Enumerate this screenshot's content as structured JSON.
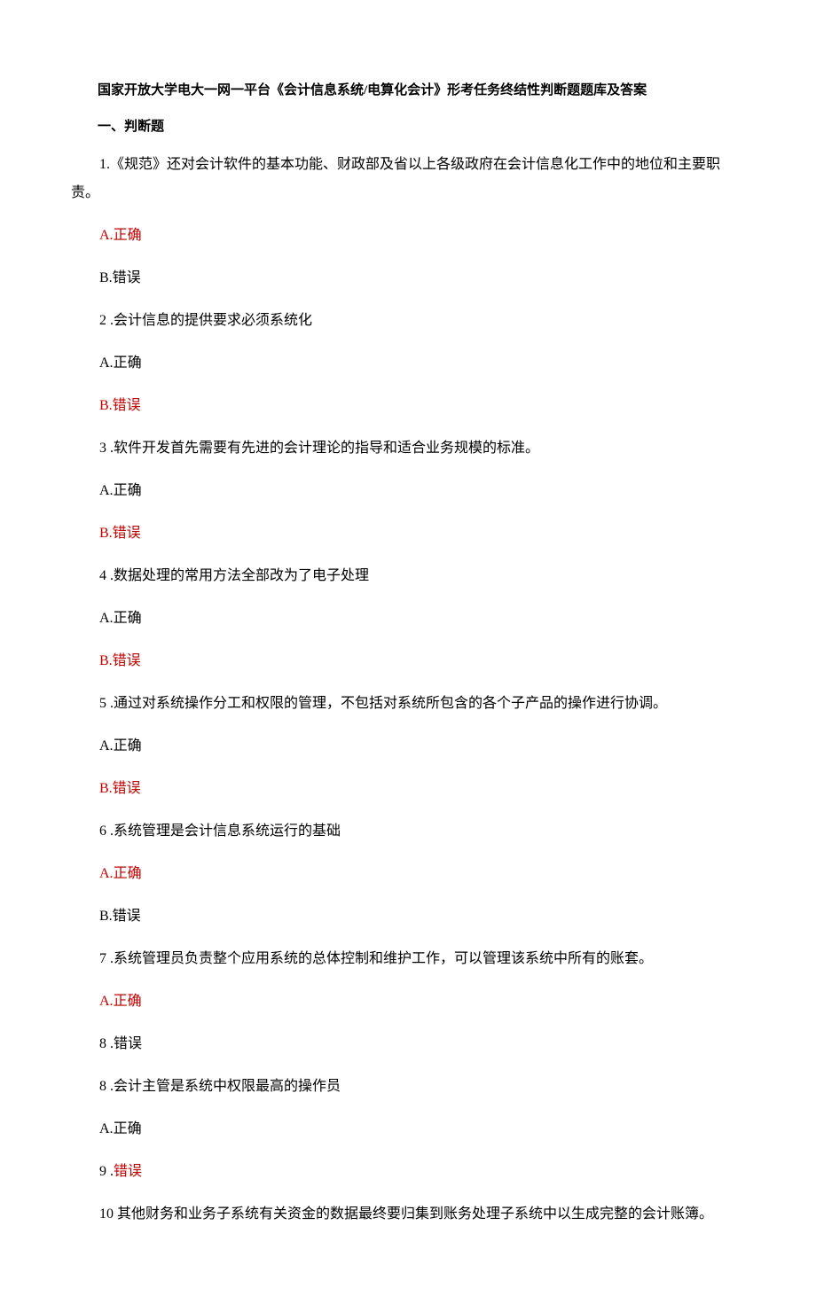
{
  "colors": {
    "text": "#000000",
    "highlight": "#c00000",
    "background": "#ffffff"
  },
  "typography": {
    "title_fontsize": 15,
    "body_fontsize": 16,
    "font_family": "SimSun",
    "line_height": 2.0
  },
  "title": "国家开放大学电大一网一平台《会计信息系统/电算化会计》形考任务终结性判断题题库及答案",
  "section_heading": "一、判断题",
  "items": [
    {
      "prefix": "1.",
      "text": "《规范》还对会计软件的基本功能、财政部及省以上各级政府在会计信息化工作中的地位和主要职责。",
      "color": "normal"
    },
    {
      "prefix": "A.",
      "text": "正确",
      "color": "correct"
    },
    {
      "prefix": "B.",
      "text": "错误",
      "color": "normal"
    },
    {
      "prefix": "2 .",
      "text": "会计信息的提供要求必须系统化",
      "color": "normal"
    },
    {
      "prefix": "A.",
      "text": "正确",
      "color": "normal"
    },
    {
      "prefix": "B.",
      "text": "错误",
      "color": "correct"
    },
    {
      "prefix": "3 .",
      "text": "软件开发首先需要有先进的会计理论的指导和适合业务规模的标准。",
      "color": "normal"
    },
    {
      "prefix": "A.",
      "text": "正确",
      "color": "normal"
    },
    {
      "prefix": "B.",
      "text": "错误",
      "color": "correct"
    },
    {
      "prefix": "4 .",
      "text": "数据处理的常用方法全部改为了电子处理",
      "color": "normal"
    },
    {
      "prefix": "A.",
      "text": "正确",
      "color": "normal"
    },
    {
      "prefix": "B.",
      "text": "错误",
      "color": "correct"
    },
    {
      "prefix": "5 .",
      "text": "通过对系统操作分工和权限的管理，不包括对系统所包含的各个子产品的操作进行协调。",
      "color": "normal"
    },
    {
      "prefix": "A.",
      "text": "正确",
      "color": "normal"
    },
    {
      "prefix": "B.",
      "text": "错误",
      "color": "correct"
    },
    {
      "prefix": "6 .",
      "text": "系统管理是会计信息系统运行的基础",
      "color": "normal"
    },
    {
      "prefix": "A.",
      "text": "正确",
      "color": "correct"
    },
    {
      "prefix": "B.",
      "text": "错误",
      "color": "normal"
    },
    {
      "prefix": "7 .",
      "text": "系统管理员负责整个应用系统的总体控制和维护工作，可以管理该系统中所有的账套。",
      "color": "normal"
    },
    {
      "prefix": "A.",
      "text": "正确",
      "color": "correct"
    },
    {
      "prefix": "8 .",
      "text": "错误",
      "color": "normal"
    },
    {
      "prefix": "8 .",
      "text": "会计主管是系统中权限最高的操作员",
      "color": "normal"
    },
    {
      "prefix": "A.",
      "text": "正确",
      "color": "normal"
    },
    {
      "prefix": "9  .",
      "text": "错误",
      "color": "correct-prefix-normal"
    },
    {
      "prefix": "10 ",
      "text": "其他财务和业务子系统有关资金的数据最终要归集到账务处理子系统中以生成完整的会计账簿。",
      "color": "normal"
    }
  ]
}
